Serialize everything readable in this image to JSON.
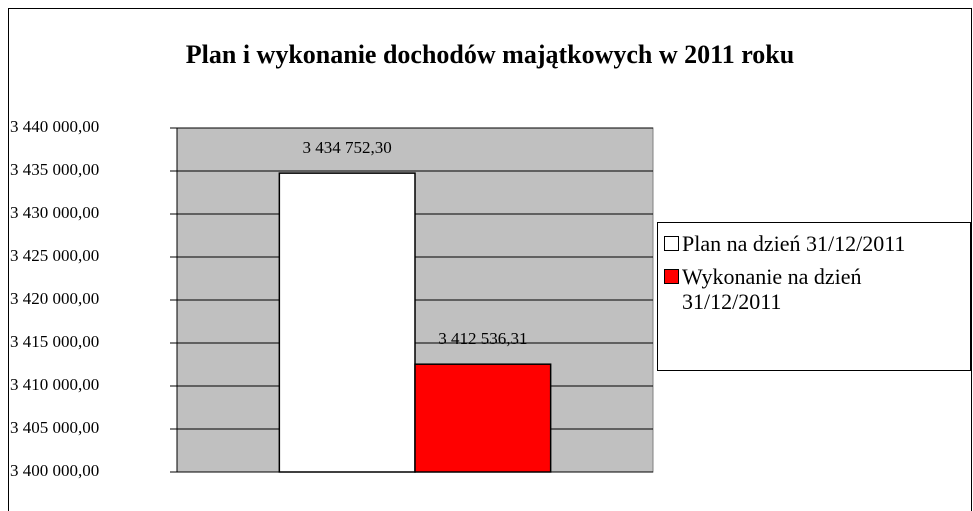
{
  "chart_data": {
    "type": "bar",
    "title": "Plan i wykonanie dochodów majątkowych w 2011 roku",
    "categories": [
      null
    ],
    "series": [
      {
        "name": "Plan na dzień 31/12/2011",
        "color": "#ffffff",
        "values": [
          3434752.3
        ],
        "value_labels": [
          "3 434 752,30"
        ]
      },
      {
        "name": "Wykonanie na dzień 31/12/2011",
        "color": "#ff0000",
        "values": [
          3412536.31
        ],
        "value_labels": [
          "3 412 536,31"
        ]
      }
    ],
    "ylim": [
      3400000,
      3440000
    ],
    "yticks": [
      {
        "value": 3400000,
        "label": "3 400 000,00"
      },
      {
        "value": 3405000,
        "label": "3 405 000,00"
      },
      {
        "value": 3410000,
        "label": "3 410 000,00"
      },
      {
        "value": 3415000,
        "label": "3 415 000,00"
      },
      {
        "value": 3420000,
        "label": "3 420 000,00"
      },
      {
        "value": 3425000,
        "label": "3 425 000,00"
      },
      {
        "value": 3430000,
        "label": "3 430 000,00"
      },
      {
        "value": 3435000,
        "label": "3 435 000,00"
      },
      {
        "value": 3440000,
        "label": "3 440 000,00"
      }
    ],
    "grid": true,
    "plot_background": "#c0c0c0",
    "legend": "right"
  }
}
